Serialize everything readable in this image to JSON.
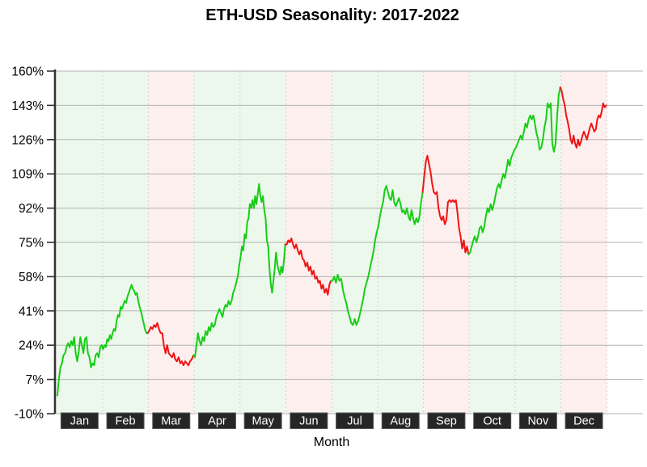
{
  "chart_data": {
    "type": "line",
    "title": "ETH-USD Seasonality: 2017-2022",
    "xlabel": "Month",
    "ylabel": "",
    "ylim": [
      -10,
      160
    ],
    "y_tick_labels": [
      "160%",
      "143%",
      "126%",
      "109%",
      "92%",
      "75%",
      "58%",
      "41%",
      "24%",
      "7%",
      "-10%"
    ],
    "y_tick_values": [
      160,
      143,
      126,
      109,
      92,
      75,
      58,
      41,
      24,
      7,
      -10
    ],
    "grid": "horizontal solid gray lines; dashed vertical lines at month boundaries",
    "legend": "none",
    "colors": {
      "line_up": "#17cd17",
      "line_down": "#ee1414",
      "band_up": "#edf8ec",
      "band_down": "#fdefee",
      "gridline": "#b3b3b3",
      "month_boundary": "#cfcfcf",
      "axis_spine": "#333333",
      "month_box_bg": "#262626",
      "month_box_border": "#585858",
      "month_box_text": "#ffffff",
      "title_text": "#000000"
    },
    "months": [
      {
        "label": "Jan",
        "trend": "up",
        "values": [
          -1,
          7,
          13,
          15,
          19,
          20,
          23,
          25,
          23,
          26,
          24,
          28,
          20,
          16,
          21,
          28,
          24,
          20,
          27,
          28,
          20,
          18,
          13,
          15,
          14,
          19,
          20,
          18,
          23,
          24
        ]
      },
      {
        "label": "Feb",
        "trend": "up",
        "values": [
          22,
          24,
          23,
          27,
          26,
          29,
          27,
          30,
          32,
          31,
          36,
          39,
          38,
          43,
          42,
          44,
          46,
          45,
          48,
          50,
          52,
          54,
          52,
          51,
          49,
          50,
          46,
          43,
          41,
          38,
          35,
          32,
          30,
          30
        ]
      },
      {
        "label": "Mar",
        "trend": "down",
        "values": [
          31,
          33,
          32,
          34,
          33,
          35,
          32,
          30,
          30,
          24,
          20,
          24,
          20,
          19,
          18,
          20,
          17,
          16,
          18,
          15,
          16,
          14,
          16,
          15,
          14,
          16,
          17,
          19
        ]
      },
      {
        "label": "Apr",
        "trend": "up",
        "values": [
          18,
          24,
          30,
          26,
          24,
          28,
          26,
          31,
          29,
          33,
          31,
          35,
          33,
          34,
          38,
          40,
          42,
          40,
          38,
          42,
          44,
          43,
          46,
          44,
          46,
          50,
          52,
          55,
          58,
          64
        ]
      },
      {
        "label": "May",
        "trend": "up",
        "values": [
          68,
          73,
          71,
          79,
          77,
          85,
          87,
          94,
          92,
          96,
          92,
          98,
          94,
          99,
          104,
          98,
          95,
          98,
          91,
          87,
          76,
          73,
          62,
          54,
          50,
          56,
          62,
          70,
          64,
          61,
          59,
          63,
          60,
          66,
          74
        ]
      },
      {
        "label": "Jun",
        "trend": "down",
        "values": [
          74,
          76,
          75,
          77,
          74,
          72,
          74,
          71,
          69,
          71,
          67,
          66,
          63,
          65,
          61,
          63,
          59,
          61,
          57,
          58,
          55,
          56,
          52,
          54,
          50,
          52,
          49,
          54,
          56
        ]
      },
      {
        "label": "Jul",
        "trend": "up",
        "values": [
          56,
          58,
          55,
          59,
          56,
          57,
          52,
          48,
          45,
          41,
          38,
          35,
          34,
          37,
          34,
          36,
          39,
          43,
          47,
          52,
          55,
          58,
          62,
          66,
          70,
          76,
          80
        ]
      },
      {
        "label": "Aug",
        "trend": "up",
        "values": [
          83,
          88,
          92,
          95,
          101,
          103,
          100,
          97,
          96,
          101,
          95,
          93,
          95,
          97,
          94,
          90,
          91,
          89,
          92,
          88,
          86,
          91,
          87,
          84,
          87,
          85,
          88,
          95,
          100
        ]
      },
      {
        "label": "Sep",
        "trend": "down",
        "values": [
          108,
          115,
          118,
          114,
          110,
          104,
          100,
          99,
          100,
          92,
          88,
          86,
          88,
          84,
          86,
          95,
          96,
          95,
          96,
          95,
          96,
          90,
          82,
          78,
          72,
          76,
          70,
          73,
          69
        ]
      },
      {
        "label": "Oct",
        "trend": "up",
        "values": [
          70,
          73,
          76,
          78,
          75,
          78,
          82,
          83,
          80,
          83,
          88,
          92,
          90,
          94,
          91,
          94,
          98,
          102,
          104,
          102,
          106,
          109,
          107,
          111,
          116,
          113,
          117,
          119,
          121
        ]
      },
      {
        "label": "Nov",
        "trend": "up",
        "values": [
          122,
          124,
          126,
          128,
          126,
          130,
          134,
          132,
          136,
          138,
          136,
          138,
          134,
          129,
          126,
          121,
          122,
          126,
          132,
          136,
          144,
          142,
          144,
          124,
          120,
          124,
          137,
          148,
          152
        ]
      },
      {
        "label": "Dec",
        "trend": "down",
        "values": [
          150,
          146,
          143,
          138,
          135,
          131,
          126,
          124,
          128,
          124,
          122,
          126,
          123,
          125,
          128,
          130,
          128,
          126,
          129,
          132,
          134,
          132,
          130,
          131,
          136,
          138,
          137,
          140,
          144,
          142,
          143
        ]
      }
    ]
  }
}
